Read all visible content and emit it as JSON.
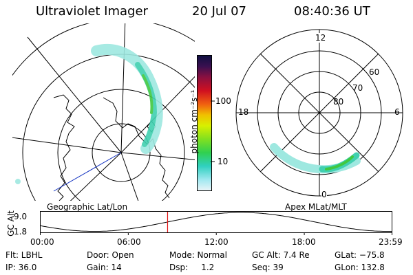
{
  "header": {
    "title": "Ultraviolet Imager",
    "date": "20 Jul 07",
    "time": "08:40:36 UT"
  },
  "colorbar": {
    "unit_label": "photon cm⁻²s⁻¹",
    "ticks": [
      "100",
      "10"
    ]
  },
  "left_map": {
    "caption": "Geographic Lat/Lon"
  },
  "right_map": {
    "caption": "Apex MLat/MLT",
    "mlt_labels": {
      "top": "12",
      "left": "18",
      "right": "6",
      "bottom": "0"
    },
    "lat_labels": [
      "60",
      "70",
      "80"
    ]
  },
  "gc_plot": {
    "axis_label": "GC Alt",
    "y_ticks": [
      "9.0",
      "1.8"
    ],
    "x_ticks": [
      "00:00",
      "06:00",
      "12:00",
      "18:00",
      "23:59"
    ],
    "marker_time_hours": 8.68,
    "marker_color": "#e01010"
  },
  "info": {
    "flt": "Flt: LBHL",
    "ip": "IP: 36.0",
    "door": "Door: Open",
    "gain": "Gain: 14",
    "mode": "Mode: Normal",
    "dsp": "Dsp:     1.2",
    "gc_alt": "GC Alt: 7.4 Re",
    "seq": "Seq: 39",
    "glat": "GLat: −75.8",
    "glon": "GLon: 132.8"
  },
  "colors": {
    "aurora_low": "#9ee8e0",
    "aurora_mid": "#40d0b0",
    "aurora_high": "#40c840",
    "coast": "#000000",
    "track": "#1030c0"
  }
}
